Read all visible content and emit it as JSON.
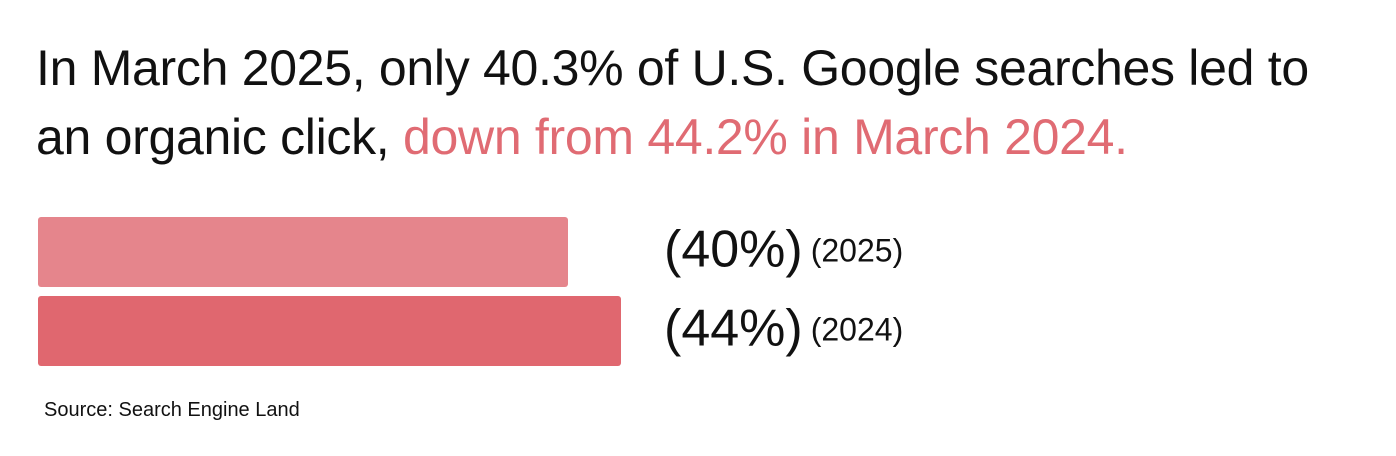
{
  "headline": {
    "part1": "In March 2025, only 40.3% of U.S. Google searches led to an organic click,",
    "highlight": "down from 44.2% in March 2024."
  },
  "chart_data": {
    "type": "bar",
    "orientation": "horizontal",
    "categories": [
      "(2025)",
      "(2024)"
    ],
    "values": [
      40,
      44
    ],
    "value_labels": [
      "(40%)",
      "(44%)"
    ],
    "colors": [
      "#e5858c",
      "#e0676f"
    ],
    "xlim": [
      0,
      100
    ],
    "grid": false,
    "legend": "none"
  },
  "source": "Source: Search Engine Land",
  "colors": {
    "highlight": "#e06b73",
    "text": "#111111"
  }
}
